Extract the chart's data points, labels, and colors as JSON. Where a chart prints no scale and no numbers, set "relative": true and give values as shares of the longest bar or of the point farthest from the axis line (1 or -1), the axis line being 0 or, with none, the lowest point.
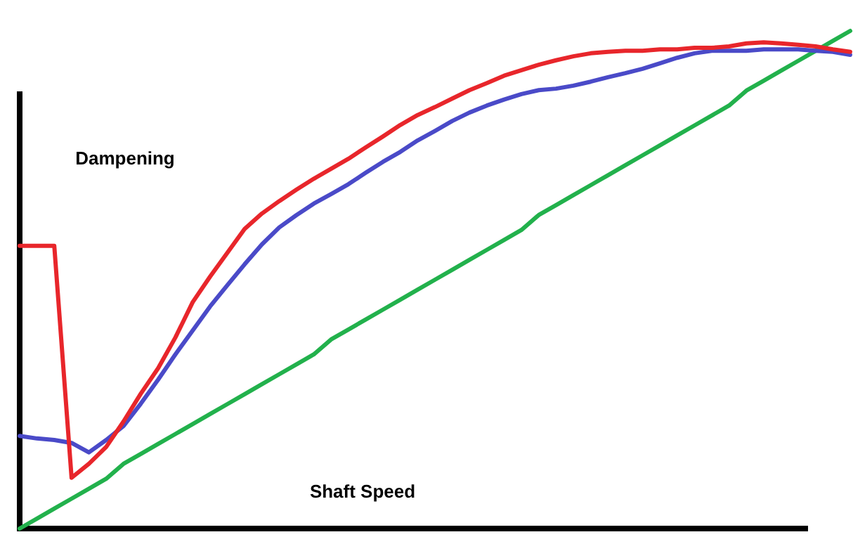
{
  "chart_data": {
    "type": "line",
    "relative": true,
    "xlabel": "Shaft Speed",
    "ylabel": "Dampening",
    "categories": [
      null,
      null,
      null,
      null,
      null,
      null,
      null,
      null,
      null,
      null,
      null,
      null,
      null,
      null,
      null,
      null,
      null,
      null,
      null,
      null,
      null,
      null,
      null,
      null,
      null,
      null,
      null,
      null,
      null,
      null,
      null,
      null,
      null,
      null,
      null,
      null,
      null,
      null,
      null,
      null,
      null,
      null,
      null,
      null,
      null,
      null,
      null,
      null,
      null
    ],
    "series": [
      {
        "color": "#22b14c",
        "values": [
          0,
          0.02,
          0.04,
          0.06,
          0.08,
          0.1,
          0.13,
          0.15,
          0.17,
          0.19,
          0.21,
          0.23,
          0.25,
          0.27,
          0.29,
          0.31,
          0.33,
          0.35,
          0.38,
          0.4,
          0.42,
          0.44,
          0.46,
          0.48,
          0.5,
          0.52,
          0.54,
          0.56,
          0.58,
          0.6,
          0.63,
          0.65,
          0.67,
          0.69,
          0.71,
          0.73,
          0.75,
          0.77,
          0.79,
          0.81,
          0.83,
          0.85,
          0.88,
          0.9,
          0.92,
          0.94,
          0.96,
          0.98,
          1
        ]
      },
      {
        "color": "#4a4ac8",
        "values": [
          0.186,
          0.181,
          0.178,
          0.172,
          0.153,
          0.178,
          0.206,
          0.251,
          0.299,
          0.35,
          0.398,
          0.446,
          0.489,
          0.531,
          0.571,
          0.605,
          0.63,
          0.653,
          0.672,
          0.692,
          0.715,
          0.737,
          0.757,
          0.78,
          0.799,
          0.819,
          0.836,
          0.85,
          0.862,
          0.873,
          0.881,
          0.884,
          0.89,
          0.898,
          0.907,
          0.915,
          0.924,
          0.935,
          0.946,
          0.955,
          0.96,
          0.96,
          0.96,
          0.963,
          0.963,
          0.963,
          0.96,
          0.958,
          0.952
        ]
      },
      {
        "color": "#e8262b",
        "values": [
          0.568,
          0.568,
          0.568,
          0.102,
          0.13,
          0.164,
          0.215,
          0.271,
          0.322,
          0.384,
          0.455,
          0.506,
          0.554,
          0.602,
          0.633,
          0.658,
          0.681,
          0.703,
          0.723,
          0.743,
          0.766,
          0.788,
          0.811,
          0.831,
          0.847,
          0.864,
          0.881,
          0.895,
          0.91,
          0.921,
          0.932,
          0.941,
          0.949,
          0.955,
          0.958,
          0.96,
          0.96,
          0.963,
          0.963,
          0.966,
          0.966,
          0.969,
          0.975,
          0.977,
          0.975,
          0.972,
          0.969,
          0.963,
          0.958
        ]
      }
    ]
  }
}
